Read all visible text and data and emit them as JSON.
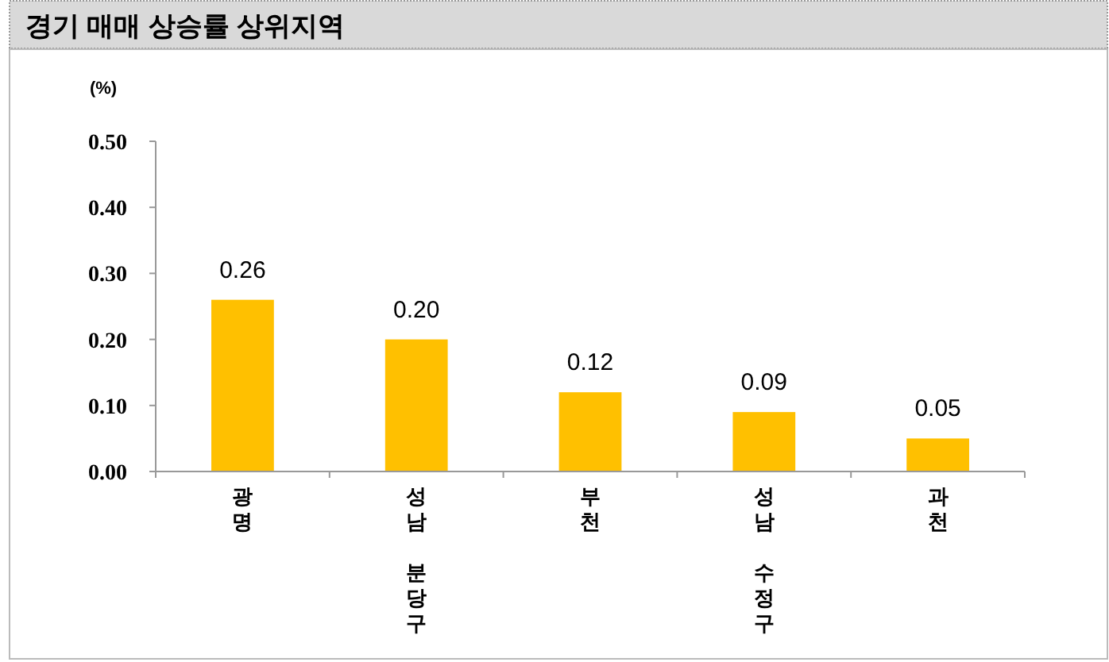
{
  "chart_data": {
    "type": "bar",
    "title": "경기 매매 상승률 상위지역",
    "ylabel": "(%)",
    "categories": [
      "광명",
      "성남 분당구",
      "부천",
      "성남 수정구",
      "과천"
    ],
    "values": [
      0.26,
      0.2,
      0.12,
      0.09,
      0.05
    ],
    "color": "#ffc000",
    "ylim": [
      0,
      0.5
    ],
    "yticks": [
      {
        "value": 0,
        "label": "0.00"
      },
      {
        "value": 0.1,
        "label": "0.10"
      },
      {
        "value": 0.2,
        "label": "0.20"
      },
      {
        "value": 0.3,
        "label": "0.30"
      },
      {
        "value": 0.4,
        "label": "0.40"
      },
      {
        "value": 0.5,
        "label": "0.50"
      }
    ],
    "value_labels": [
      "0.26",
      "0.20",
      "0.12",
      "0.09",
      "0.05"
    ],
    "grid": false
  }
}
